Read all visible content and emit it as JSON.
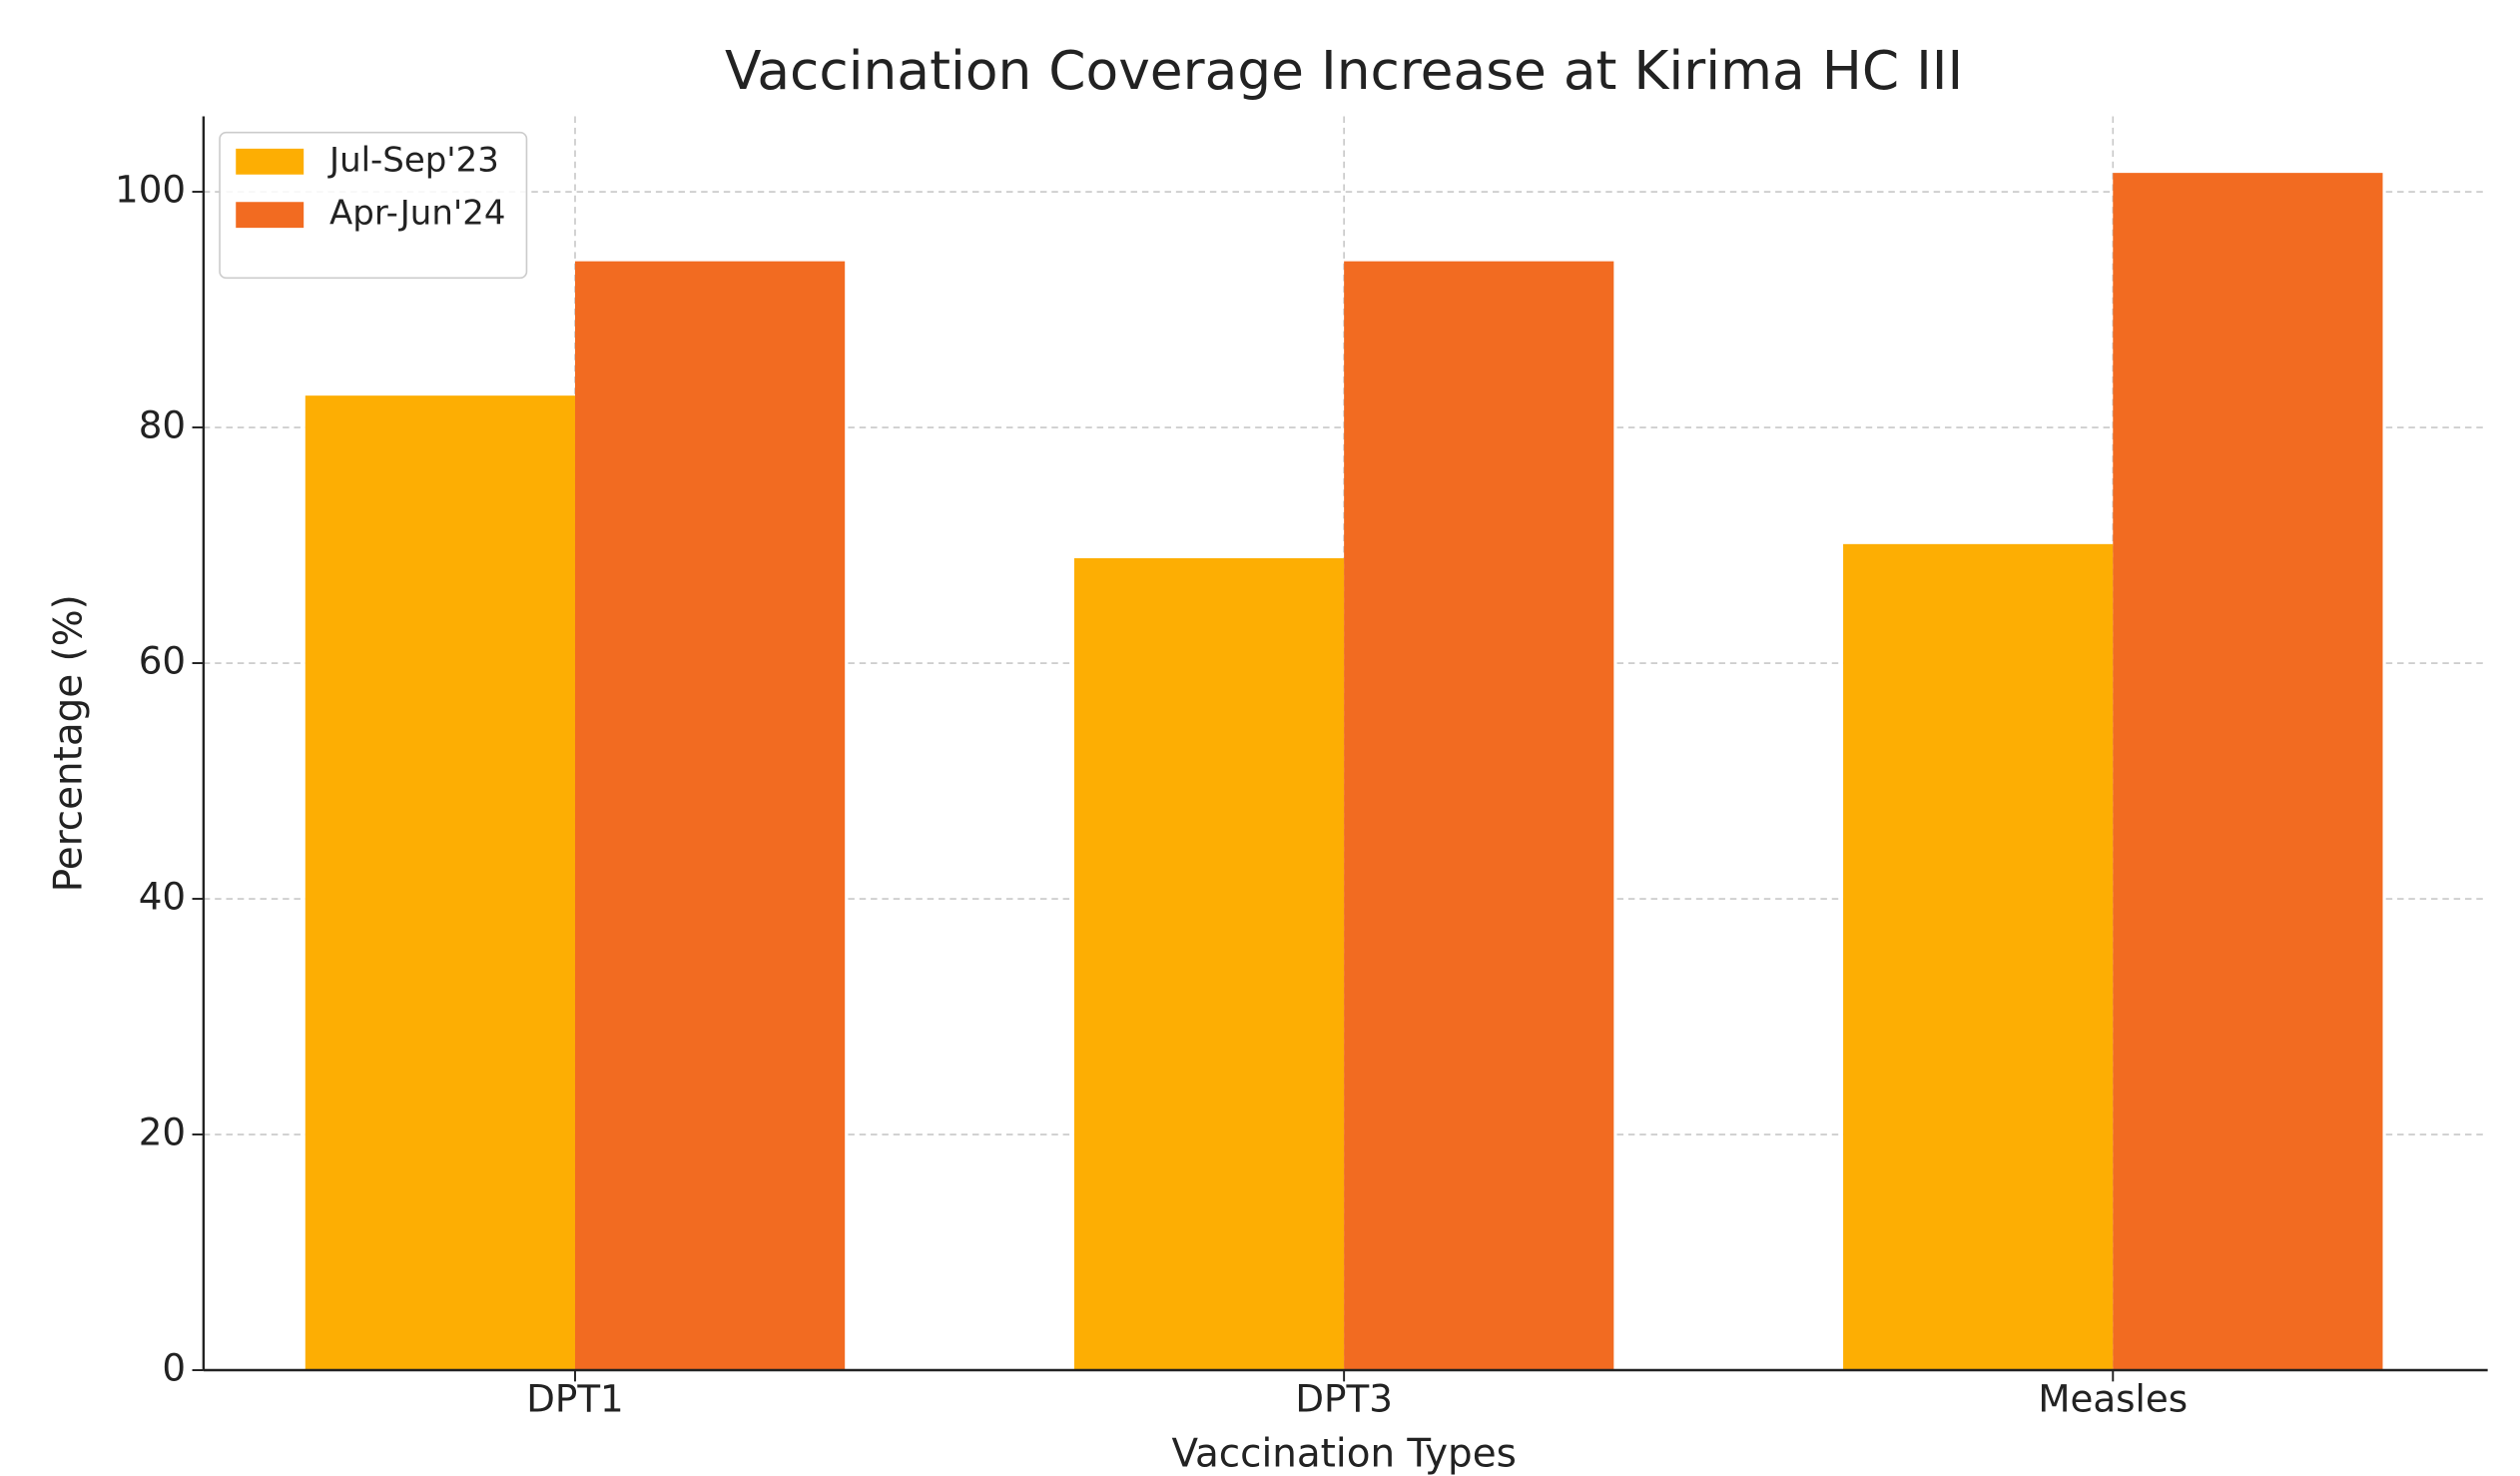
{
  "chart_data": {
    "type": "bar",
    "title": "Vaccination Coverage Increase at Kirima HC III",
    "x_label": "Vaccination Types",
    "y_label": "Percentage (%)",
    "categories": [
      "DPT1",
      "DPT3",
      "Measles"
    ],
    "series": [
      {
        "name": "Jul-Sep'23",
        "color": "#fdae03",
        "values": [
          82.7,
          68.9,
          70.1
        ]
      },
      {
        "name": "Apr-Jun'24",
        "color": "#f26b21",
        "values": [
          94.1,
          94.1,
          101.6
        ]
      }
    ],
    "ylim": [
      0,
      106.4
    ],
    "yticks": [
      0,
      20,
      40,
      60,
      80,
      100
    ],
    "grid": true,
    "legend": "upper left"
  }
}
